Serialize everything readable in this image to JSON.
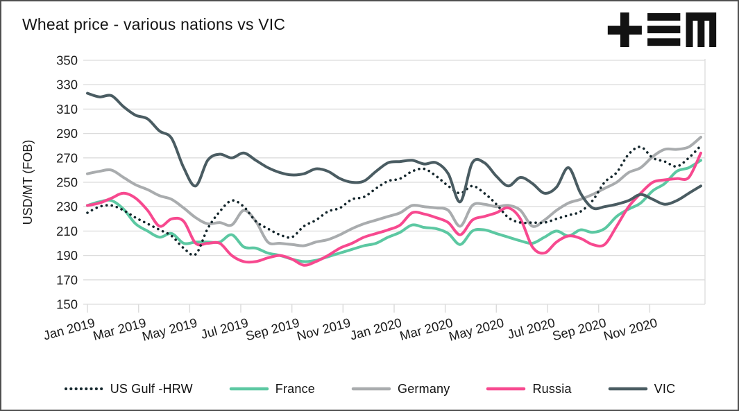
{
  "header": {
    "title": "Wheat price - various nations vs VIC",
    "logo": "tem-logo"
  },
  "legend": {
    "items": [
      {
        "label": "US Gulf -HRW",
        "color": "#14262c",
        "style": "dotted"
      },
      {
        "label": "France",
        "color": "#5cc8a2",
        "style": "solid"
      },
      {
        "label": "Germany",
        "color": "#a9acae",
        "style": "solid"
      },
      {
        "label": "Russia",
        "color": "#f7498f",
        "style": "solid"
      },
      {
        "label": "VIC",
        "color": "#4a5c62",
        "style": "solid"
      }
    ]
  },
  "colors": {
    "background": "#ffffff",
    "border": "#4f4f4f",
    "grid": "#dcdcdc",
    "axis_text": "#1a1a1a",
    "logo": "#121212"
  },
  "chart_data": {
    "type": "line",
    "title": "Wheat price - various nations vs VIC",
    "ylabel": "USD/MT (FOB)",
    "ylim": [
      150,
      350
    ],
    "y_ticks": [
      350,
      330,
      310,
      290,
      270,
      250,
      230,
      210,
      190,
      170,
      150
    ],
    "x_tick_labels": [
      "Jan 2019",
      "Mar 2019",
      "May 2019",
      "Jul 2019",
      "Sep 2019",
      "Nov 2019",
      "Jan 2020",
      "Mar 2020",
      "May 2020",
      "Jul 2020",
      "Sep 2020",
      "Nov 2020"
    ],
    "x_unit": "biweekly samples, Jan 2019 - Dec 2020",
    "grid": "horizontal",
    "legend_position": "bottom",
    "series": [
      {
        "name": "US Gulf -HRW",
        "color": "#14262c",
        "line_style": "dotted",
        "values": [
          225,
          230,
          231,
          227,
          221,
          216,
          211,
          206,
          196,
          191,
          212,
          226,
          235,
          230,
          218,
          212,
          207,
          205,
          214,
          219,
          226,
          229,
          236,
          238,
          245,
          251,
          253,
          259,
          261,
          255,
          247,
          241,
          247,
          241,
          232,
          221,
          217,
          217,
          217,
          220,
          223,
          226,
          235,
          250,
          258,
          273,
          279,
          270,
          267,
          263,
          270,
          280
        ]
      },
      {
        "name": "France",
        "color": "#5cc8a2",
        "line_style": "solid",
        "values": [
          231,
          234,
          235,
          228,
          216,
          210,
          205,
          208,
          200,
          201,
          201,
          201,
          207,
          197,
          196,
          192,
          190,
          187,
          185,
          186,
          189,
          192,
          195,
          198,
          200,
          205,
          209,
          215,
          213,
          212,
          208,
          199,
          210,
          211,
          208,
          205,
          202,
          200,
          205,
          210,
          206,
          211,
          209,
          212,
          222,
          228,
          233,
          243,
          249,
          259,
          262,
          268
        ]
      },
      {
        "name": "Germany",
        "color": "#a9acae",
        "line_style": "solid",
        "values": [
          257,
          259,
          260,
          254,
          248,
          244,
          239,
          236,
          229,
          221,
          216,
          217,
          215,
          227,
          218,
          201,
          200,
          199,
          198,
          201,
          203,
          207,
          212,
          216,
          219,
          222,
          225,
          231,
          230,
          229,
          227,
          214,
          231,
          232,
          230,
          231,
          227,
          214,
          219,
          227,
          233,
          236,
          240,
          245,
          250,
          258,
          262,
          271,
          277,
          277,
          279,
          287
        ]
      },
      {
        "name": "Russia",
        "color": "#f7498f",
        "line_style": "solid",
        "values": [
          231,
          233,
          237,
          241,
          237,
          227,
          214,
          220,
          218,
          200,
          200,
          200,
          190,
          185,
          185,
          188,
          190,
          187,
          182,
          185,
          190,
          196,
          200,
          205,
          208,
          211,
          215,
          225,
          224,
          221,
          217,
          207,
          219,
          222,
          225,
          229,
          220,
          197,
          192,
          201,
          206,
          204,
          199,
          199,
          214,
          230,
          241,
          250,
          252,
          253,
          254,
          274
        ]
      },
      {
        "name": "VIC",
        "color": "#4a5c62",
        "line_style": "solid",
        "values": [
          323,
          320,
          321,
          312,
          305,
          302,
          292,
          286,
          262,
          247,
          268,
          273,
          270,
          274,
          268,
          262,
          258,
          256,
          257,
          261,
          259,
          253,
          250,
          251,
          259,
          266,
          267,
          268,
          265,
          266,
          257,
          234,
          266,
          266,
          255,
          247,
          254,
          249,
          241,
          246,
          262,
          241,
          229,
          230,
          232,
          235,
          240,
          236,
          232,
          235,
          241,
          247
        ]
      }
    ]
  }
}
